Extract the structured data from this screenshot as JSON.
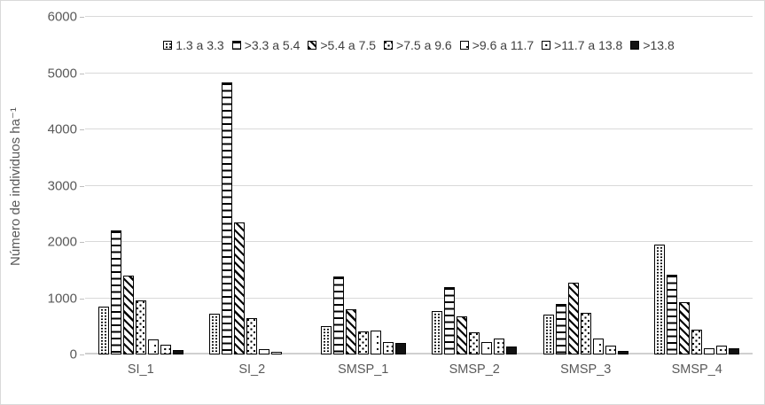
{
  "figure": {
    "background": "#ffffff",
    "border_color": "#d9d9d9",
    "text_color": "#595959",
    "gridline_color": "#d9d9d9"
  },
  "chart_data": {
    "type": "bar",
    "title": "",
    "y_title": "Número de individuos ha⁻¹",
    "x_title": "",
    "ylim": [
      0,
      6000
    ],
    "y_ticks": [
      0,
      1000,
      2000,
      3000,
      4000,
      5000,
      6000
    ],
    "grid": "horizontal gridlines on",
    "legend_position": "top",
    "bar_style": "black-and-white pattern fills, black outlines",
    "categories": [
      "SI_1",
      "SI_2",
      "SMSP_1",
      "SMSP_2",
      "SMSP_3",
      "SMSP_4"
    ],
    "series": [
      {
        "name": "1.3 a 3.3",
        "pattern": "dot-grid",
        "values": [
          850,
          730,
          510,
          770,
          710,
          1960
        ]
      },
      {
        "name": ">3.3 a 5.4",
        "pattern": "hlines",
        "values": [
          2200,
          4830,
          1380,
          1200,
          905,
          1420
        ]
      },
      {
        "name": ">5.4 a 7.5",
        "pattern": "diag",
        "values": [
          1400,
          2350,
          800,
          680,
          1270,
          930
        ]
      },
      {
        "name": ">7.5 a 9.6",
        "pattern": "diag-dots",
        "values": [
          960,
          640,
          410,
          395,
          735,
          440
        ]
      },
      {
        "name": ">9.6 a 11.7",
        "pattern": "sparse-dots",
        "values": [
          270,
          90,
          425,
          215,
          290,
          105
        ]
      },
      {
        "name": ">11.7 a 13.8",
        "pattern": "dots",
        "values": [
          170,
          25,
          220,
          290,
          160,
          165
        ]
      },
      {
        "name": ">13.8",
        "pattern": "solid",
        "values": [
          75,
          0,
          210,
          145,
          70,
          105
        ]
      }
    ]
  }
}
